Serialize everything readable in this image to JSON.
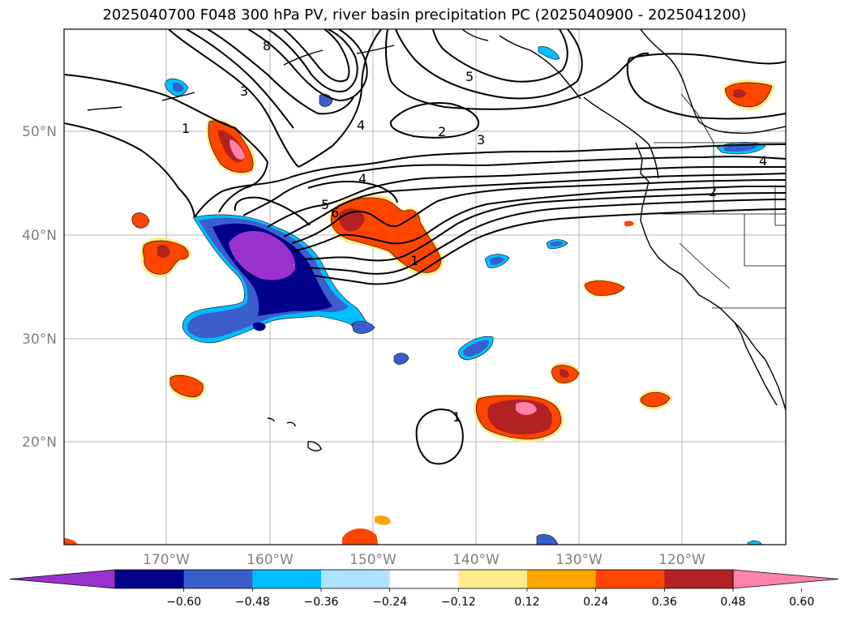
{
  "title": "2025040700 F048 300 hPa PV, river basin precipitation PC (2025040900 - 2025041200)",
  "map": {
    "lat_labels": [
      "50°N",
      "40°N",
      "30°N",
      "20°N"
    ],
    "lon_labels": [
      "170°W",
      "160°W",
      "150°W",
      "140°W",
      "130°W",
      "120°W"
    ],
    "gridlines": true
  },
  "pv_contour_labels": [
    "1",
    "1",
    "1",
    "2",
    "2",
    "3",
    "3",
    "4",
    "4",
    "4",
    "5",
    "5",
    "6",
    "8"
  ],
  "colorbar": {
    "ticks": [
      "−0.60",
      "−0.48",
      "−0.36",
      "−0.24",
      "−0.12",
      "0.12",
      "0.24",
      "0.36",
      "0.48",
      "0.60"
    ],
    "colors": [
      "#9932cc",
      "#00008b",
      "#3a5fcd",
      "#00bfff",
      "#b0e2ff",
      "#ffffff",
      "#ffec8b",
      "#ffa500",
      "#ff4500",
      "#b22222",
      "#ff82ab"
    ],
    "extend": "both"
  }
}
